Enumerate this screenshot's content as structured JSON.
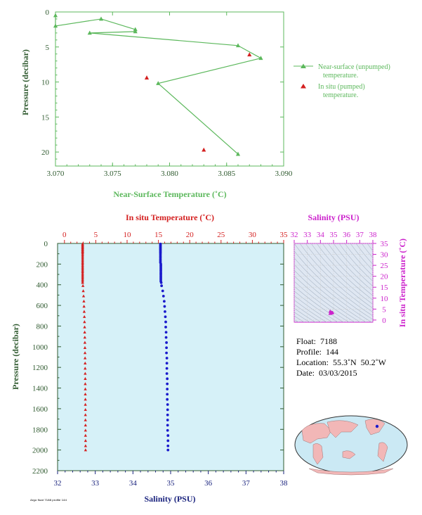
{
  "colors": {
    "green": "#5cb85c",
    "red": "#d42020",
    "blue": "#1a1acc",
    "magenta": "#cc22cc",
    "axis_dark": "#2f5a2f",
    "navy": "#1a237e",
    "panel_bg": "#d6f1f8",
    "grid": "#d0d0d0",
    "land": "#f2b7b7",
    "ocean": "#cbe9f4"
  },
  "chart_data": [
    {
      "id": "near_surface",
      "type": "line",
      "xlabel": "Near-Surface Temperature (˚C)",
      "ylabel": "Pressure (decibar)",
      "xlim": [
        3.07,
        3.09
      ],
      "ylim": [
        22,
        0
      ],
      "xticks": [
        "3.070",
        "3.075",
        "3.080",
        "3.085",
        "3.090"
      ],
      "yticks": [
        "0",
        "5",
        "10",
        "15",
        "20"
      ],
      "series": [
        {
          "name": "Near-surface (unpumped) temperature.",
          "marker": "triangle",
          "line": true,
          "points": [
            [
              3.07,
              0.5
            ],
            [
              3.07,
              2.0
            ],
            [
              3.074,
              1.0
            ],
            [
              3.077,
              2.5
            ],
            [
              3.077,
              2.8
            ],
            [
              3.073,
              3.0
            ],
            [
              3.086,
              4.8
            ],
            [
              3.088,
              6.6
            ],
            [
              3.079,
              10.2
            ],
            [
              3.086,
              20.3
            ]
          ]
        },
        {
          "name": "In situ (pumped) temperature.",
          "marker": "triangle",
          "line": false,
          "points": [
            [
              3.087,
              6.1
            ],
            [
              3.078,
              9.4
            ],
            [
              3.083,
              19.7
            ]
          ]
        }
      ]
    },
    {
      "id": "profile",
      "type": "scatter",
      "ylabel": "Pressure (decibar)",
      "ylim": [
        2200,
        0
      ],
      "yticks": [
        "0",
        "200",
        "400",
        "600",
        "800",
        "1000",
        "1200",
        "1400",
        "1600",
        "1800",
        "2000",
        "2200"
      ],
      "top_axis": {
        "label": "In situ Temperature (˚C)",
        "range": [
          -1.1,
          35
        ],
        "ticks": [
          "0",
          "5",
          "10",
          "15",
          "20",
          "25",
          "30",
          "35"
        ]
      },
      "bottom_axis": {
        "label": "Salinity (PSU)",
        "range": [
          32,
          38
        ],
        "ticks": [
          "32",
          "33",
          "34",
          "35",
          "36",
          "37",
          "38"
        ]
      },
      "series": [
        {
          "kind": "temperature",
          "marker": "triangle",
          "points": [
            [
              2.9,
              5
            ],
            [
              2.9,
              15
            ],
            [
              2.9,
              25
            ],
            [
              2.9,
              35
            ],
            [
              2.9,
              45
            ],
            [
              2.9,
              55
            ],
            [
              2.9,
              65
            ],
            [
              2.9,
              75
            ],
            [
              2.9,
              85
            ],
            [
              2.9,
              95
            ],
            [
              2.9,
              110
            ],
            [
              2.9,
              125
            ],
            [
              2.9,
              140
            ],
            [
              2.9,
              155
            ],
            [
              2.9,
              170
            ],
            [
              2.9,
              185
            ],
            [
              2.9,
              200
            ],
            [
              2.9,
              215
            ],
            [
              2.9,
              230
            ],
            [
              2.9,
              245
            ],
            [
              2.9,
              260
            ],
            [
              2.9,
              275
            ],
            [
              2.9,
              290
            ],
            [
              2.9,
              305
            ],
            [
              2.9,
              320
            ],
            [
              2.9,
              335
            ],
            [
              2.9,
              350
            ],
            [
              2.9,
              365
            ],
            [
              2.9,
              380
            ],
            [
              2.95,
              410
            ],
            [
              3.0,
              460
            ],
            [
              3.05,
              510
            ],
            [
              3.1,
              560
            ],
            [
              3.12,
              610
            ],
            [
              3.15,
              660
            ],
            [
              3.18,
              710
            ],
            [
              3.2,
              760
            ],
            [
              3.22,
              810
            ],
            [
              3.23,
              860
            ],
            [
              3.25,
              910
            ],
            [
              3.26,
              960
            ],
            [
              3.27,
              1010
            ],
            [
              3.28,
              1060
            ],
            [
              3.29,
              1110
            ],
            [
              3.3,
              1160
            ],
            [
              3.3,
              1210
            ],
            [
              3.31,
              1260
            ],
            [
              3.32,
              1310
            ],
            [
              3.32,
              1360
            ],
            [
              3.33,
              1410
            ],
            [
              3.33,
              1460
            ],
            [
              3.34,
              1510
            ],
            [
              3.34,
              1560
            ],
            [
              3.35,
              1610
            ],
            [
              3.35,
              1660
            ],
            [
              3.35,
              1710
            ],
            [
              3.36,
              1760
            ],
            [
              3.36,
              1810
            ],
            [
              3.36,
              1860
            ],
            [
              3.37,
              1910
            ],
            [
              3.37,
              1960
            ],
            [
              3.37,
              2000
            ]
          ]
        },
        {
          "kind": "salinity",
          "marker": "circle",
          "points": [
            [
              34.73,
              5
            ],
            [
              34.73,
              15
            ],
            [
              34.73,
              25
            ],
            [
              34.73,
              35
            ],
            [
              34.73,
              45
            ],
            [
              34.73,
              55
            ],
            [
              34.73,
              65
            ],
            [
              34.73,
              75
            ],
            [
              34.73,
              85
            ],
            [
              34.73,
              95
            ],
            [
              34.73,
              110
            ],
            [
              34.73,
              125
            ],
            [
              34.73,
              140
            ],
            [
              34.73,
              155
            ],
            [
              34.73,
              170
            ],
            [
              34.73,
              185
            ],
            [
              34.74,
              200
            ],
            [
              34.74,
              215
            ],
            [
              34.74,
              230
            ],
            [
              34.74,
              245
            ],
            [
              34.74,
              260
            ],
            [
              34.74,
              275
            ],
            [
              34.74,
              290
            ],
            [
              34.74,
              305
            ],
            [
              34.74,
              320
            ],
            [
              34.74,
              335
            ],
            [
              34.74,
              350
            ],
            [
              34.74,
              365
            ],
            [
              34.75,
              380
            ],
            [
              34.76,
              410
            ],
            [
              34.79,
              460
            ],
            [
              34.81,
              510
            ],
            [
              34.83,
              560
            ],
            [
              34.84,
              610
            ],
            [
              34.85,
              660
            ],
            [
              34.86,
              710
            ],
            [
              34.87,
              760
            ],
            [
              34.87,
              810
            ],
            [
              34.88,
              860
            ],
            [
              34.88,
              910
            ],
            [
              34.89,
              960
            ],
            [
              34.89,
              1010
            ],
            [
              34.89,
              1060
            ],
            [
              34.9,
              1110
            ],
            [
              34.9,
              1160
            ],
            [
              34.9,
              1210
            ],
            [
              34.9,
              1260
            ],
            [
              34.91,
              1310
            ],
            [
              34.91,
              1360
            ],
            [
              34.91,
              1410
            ],
            [
              34.91,
              1460
            ],
            [
              34.91,
              1510
            ],
            [
              34.92,
              1560
            ],
            [
              34.92,
              1610
            ],
            [
              34.92,
              1660
            ],
            [
              34.92,
              1710
            ],
            [
              34.92,
              1760
            ],
            [
              34.92,
              1810
            ],
            [
              34.93,
              1860
            ],
            [
              34.93,
              1910
            ],
            [
              34.93,
              1960
            ],
            [
              34.93,
              2000
            ]
          ]
        }
      ]
    },
    {
      "id": "ts_diagram",
      "type": "scatter",
      "xlabel": "Salinity (PSU)",
      "ylabel": "In situ Temperature (˚C)",
      "xlim": [
        32,
        38
      ],
      "ylim": [
        -1,
        35
      ],
      "xticks": [
        "32",
        "33",
        "34",
        "35",
        "36",
        "37",
        "38"
      ],
      "yticks": [
        "0",
        "5",
        "10",
        "15",
        "20",
        "25",
        "30",
        "35"
      ],
      "points": [
        [
          34.73,
          2.9
        ],
        [
          34.76,
          3.0
        ],
        [
          34.8,
          3.1
        ],
        [
          34.84,
          3.2
        ],
        [
          34.88,
          3.3
        ],
        [
          34.92,
          3.35
        ],
        [
          34.93,
          3.4
        ],
        [
          34.85,
          3.5
        ],
        [
          34.78,
          3.7
        ],
        [
          34.74,
          4.0
        ],
        [
          34.9,
          3.25
        ]
      ]
    }
  ],
  "info": {
    "float": "Float:  7188",
    "profile": "Profile:  144",
    "location": "Location:  55.3˚N  50.2˚W",
    "date": "Date:  03/03/2015"
  },
  "footer_stamp": "Argo float 7188 profile 144"
}
